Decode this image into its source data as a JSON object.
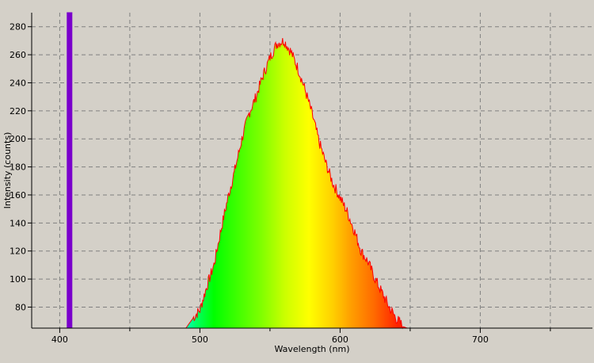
{
  "chart_data": {
    "type": "area",
    "xlabel": "Wavelength (nm)",
    "ylabel": "Intensity (counts)",
    "xlim": [
      380,
      780
    ],
    "ylim": [
      65,
      290
    ],
    "x_ticks": [
      400,
      500,
      600,
      700
    ],
    "x_minor_ticks": [
      450,
      550,
      650,
      750
    ],
    "y_ticks": [
      80,
      100,
      120,
      140,
      160,
      180,
      200,
      220,
      240,
      260,
      280
    ],
    "grid": true,
    "fill": "wavelength-spectrum-colors",
    "line_color": "#ff0000",
    "series": [
      {
        "x": [
          405,
          406,
          407,
          408,
          409
        ],
        "values": [
          290,
          290,
          290,
          290,
          290
        ]
      },
      {
        "x": [
          490,
          495,
          500,
          505,
          510,
          515,
          520,
          525,
          530,
          535,
          540,
          545,
          550,
          555,
          560,
          565,
          570,
          575,
          580,
          585,
          590,
          595,
          600,
          605,
          610,
          615,
          620,
          625,
          630,
          635,
          640,
          645,
          648
        ],
        "values": [
          65,
          72,
          78,
          95,
          110,
          135,
          158,
          178,
          200,
          218,
          230,
          245,
          258,
          268,
          270,
          262,
          250,
          235,
          218,
          198,
          182,
          168,
          158,
          148,
          135,
          120,
          112,
          100,
          90,
          80,
          72,
          66,
          65
        ]
      }
    ]
  }
}
